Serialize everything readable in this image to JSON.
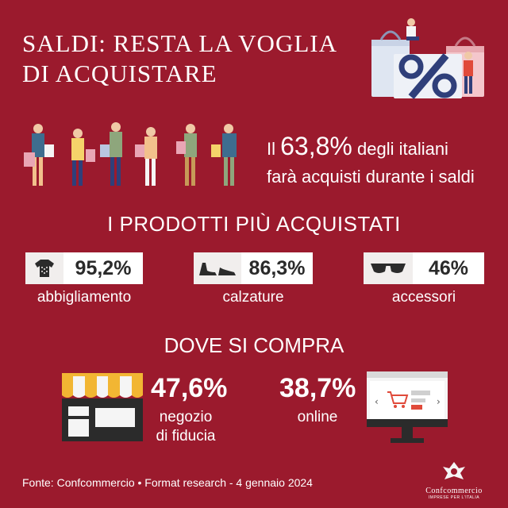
{
  "title": {
    "line1": "SALDI: RESTA LA VOGLIA",
    "line2": "DI ACQUISTARE"
  },
  "headline": {
    "prefix": "Il",
    "percent": "63,8%",
    "text1": "degli italiani",
    "text2": "farà acquisti durante i saldi"
  },
  "products": {
    "title": "I PRODOTTI PIÙ ACQUISTATI",
    "items": [
      {
        "icon": "sweater-icon",
        "value": "95,2%",
        "label": "abbigliamento"
      },
      {
        "icon": "shoe-icon",
        "value": "86,3%",
        "label": "calzature"
      },
      {
        "icon": "sunglasses-icon",
        "value": "46%",
        "label": "accessori"
      }
    ]
  },
  "where": {
    "title": "DOVE SI COMPRA",
    "store": {
      "value": "47,6%",
      "label1": "negozio",
      "label2": "di fiducia"
    },
    "online": {
      "value": "38,7%",
      "label": "online"
    }
  },
  "footer": {
    "source": "Fonte: Confcommercio • Format research - 4 gennaio 2024"
  },
  "logo": {
    "name": "Confcommercio",
    "tagline": "IMPRESE PER L'ITALIA"
  },
  "colors": {
    "background": "#9b1a2d",
    "awning_yellow": "#f2b633",
    "store_dark": "#2b2b2b",
    "box_light": "#f1eeed"
  }
}
